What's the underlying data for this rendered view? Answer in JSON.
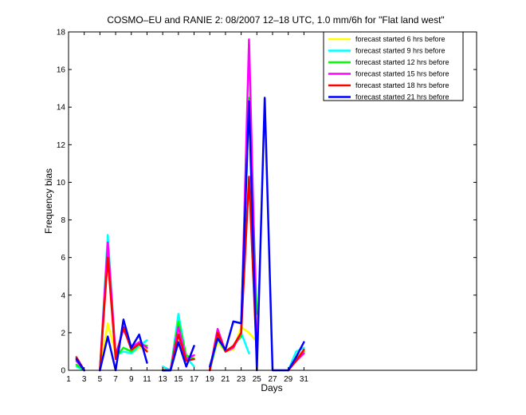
{
  "chart_data": {
    "type": "line",
    "title": "COSMO–EU and RANIE 2: 08/2007 12–18 UTC, 1.0 mm/6h for \"Flat land west\"",
    "xlabel": "Days",
    "ylabel": "Frequency bias",
    "xlim": [
      1,
      53
    ],
    "ylim": [
      0,
      18
    ],
    "xticks": [
      1,
      3,
      5,
      7,
      9,
      11,
      13,
      15,
      17,
      19,
      21,
      23,
      25,
      27,
      29,
      31
    ],
    "yticks": [
      0,
      2,
      4,
      6,
      8,
      10,
      12,
      14,
      16,
      18
    ],
    "grid": false,
    "legend_position": "top-right",
    "series": [
      {
        "name": "forecast started 6 hrs before",
        "color": "#ffff00",
        "points": [
          [
            [
              2,
              0.5
            ],
            [
              3,
              0.0
            ]
          ],
          [
            [
              5,
              0.0
            ],
            [
              6,
              2.5
            ],
            [
              7,
              0.9
            ],
            [
              8,
              1.0
            ],
            [
              9,
              0.9
            ],
            [
              10,
              1.2
            ],
            [
              11,
              1.1
            ]
          ],
          [
            [
              13,
              0.1
            ],
            [
              14,
              0.0
            ],
            [
              15,
              2.0
            ],
            [
              16,
              0.5
            ],
            [
              17,
              0.7
            ]
          ],
          [
            [
              19,
              0.1
            ],
            [
              20,
              1.5
            ],
            [
              21,
              1.0
            ],
            [
              22,
              1.1
            ],
            [
              23,
              2.3
            ],
            [
              24,
              2.0
            ],
            [
              25,
              1.5
            ]
          ],
          [
            [
              29,
              0.0
            ],
            [
              30,
              0.8
            ],
            [
              31,
              1.0
            ]
          ]
        ]
      },
      {
        "name": "forecast started 9 hrs before",
        "color": "#00ffff",
        "points": [
          [
            [
              2,
              0.2
            ],
            [
              3,
              0.0
            ]
          ],
          [
            [
              5,
              0.0
            ],
            [
              6,
              7.2
            ],
            [
              7,
              0.8
            ],
            [
              8,
              1.0
            ],
            [
              9,
              0.9
            ],
            [
              10,
              1.3
            ],
            [
              11,
              1.6
            ]
          ],
          [
            [
              13,
              0.2
            ],
            [
              14,
              0.0
            ],
            [
              15,
              3.0
            ],
            [
              16,
              0.7
            ],
            [
              17,
              0.2
            ]
          ],
          [
            [
              19,
              0.0
            ],
            [
              20,
              1.7
            ],
            [
              21,
              1.0
            ],
            [
              22,
              1.2
            ],
            [
              23,
              2.0
            ],
            [
              24,
              0.9
            ]
          ],
          [
            [
              29,
              0.0
            ],
            [
              30,
              1.0
            ],
            [
              31,
              1.2
            ]
          ]
        ]
      },
      {
        "name": "forecast started 12 hrs before",
        "color": "#00ff00",
        "points": [
          [
            [
              2,
              0.3
            ],
            [
              3,
              0.0
            ]
          ],
          [
            [
              5,
              0.0
            ],
            [
              6,
              6.5
            ],
            [
              7,
              0.7
            ],
            [
              8,
              1.2
            ],
            [
              9,
              1.0
            ],
            [
              10,
              1.4
            ],
            [
              11,
              1.3
            ]
          ],
          [
            [
              13,
              0.0
            ],
            [
              14,
              0.0
            ],
            [
              15,
              2.6
            ],
            [
              16,
              0.8
            ],
            [
              17,
              0.6
            ]
          ],
          [
            [
              19,
              0.0
            ],
            [
              20,
              1.8
            ],
            [
              21,
              1.0
            ],
            [
              22,
              1.3
            ],
            [
              23,
              1.8
            ],
            [
              24,
              14.5
            ],
            [
              25,
              3.0
            ]
          ],
          [
            [
              29,
              0.0
            ],
            [
              30,
              0.6
            ],
            [
              31,
              1.0
            ]
          ]
        ]
      },
      {
        "name": "forecast started 15 hrs before",
        "color": "#ff00ff",
        "points": [
          [
            [
              2,
              0.5
            ],
            [
              3,
              0.0
            ]
          ],
          [
            [
              5,
              0.0
            ],
            [
              6,
              6.8
            ],
            [
              7,
              0.8
            ],
            [
              8,
              2.2
            ],
            [
              9,
              1.2
            ],
            [
              10,
              1.5
            ],
            [
              11,
              1.2
            ]
          ],
          [
            [
              13,
              0.0
            ],
            [
              14,
              0.0
            ],
            [
              15,
              2.3
            ],
            [
              16,
              0.6
            ],
            [
              17,
              0.8
            ]
          ],
          [
            [
              19,
              0.0
            ],
            [
              20,
              2.2
            ],
            [
              21,
              1.0
            ],
            [
              22,
              1.2
            ],
            [
              23,
              2.0
            ],
            [
              24,
              17.6
            ],
            [
              25,
              1.0
            ]
          ],
          [
            [
              29,
              0.0
            ],
            [
              30,
              0.5
            ],
            [
              31,
              0.9
            ]
          ]
        ]
      },
      {
        "name": "forecast started 18 hrs before",
        "color": "#ff0000",
        "points": [
          [
            [
              2,
              0.7
            ],
            [
              3,
              0.0
            ]
          ],
          [
            [
              5,
              0.0
            ],
            [
              6,
              6.0
            ],
            [
              7,
              0.6
            ],
            [
              8,
              2.3
            ],
            [
              9,
              1.1
            ],
            [
              10,
              1.4
            ],
            [
              11,
              1.0
            ]
          ],
          [
            [
              13,
              0.0
            ],
            [
              14,
              0.0
            ],
            [
              15,
              1.9
            ],
            [
              16,
              0.5
            ],
            [
              17,
              0.6
            ]
          ],
          [
            [
              19,
              0.0
            ],
            [
              20,
              2.0
            ],
            [
              21,
              1.0
            ],
            [
              22,
              1.3
            ],
            [
              23,
              2.0
            ],
            [
              24,
              10.3
            ],
            [
              25,
              0.5
            ]
          ],
          [
            [
              29,
              0.0
            ],
            [
              30,
              0.5
            ],
            [
              31,
              1.1
            ]
          ]
        ]
      },
      {
        "name": "forecast started 21 hrs before",
        "color": "#0000ff",
        "points": [
          [
            [
              2,
              0.6
            ],
            [
              3,
              0.0
            ]
          ],
          [
            [
              5,
              0.0
            ],
            [
              6,
              1.8
            ],
            [
              7,
              0.0
            ],
            [
              8,
              2.7
            ],
            [
              9,
              1.2
            ],
            [
              10,
              1.9
            ],
            [
              11,
              0.4
            ]
          ],
          [
            [
              13,
              0.0
            ],
            [
              14,
              0.0
            ],
            [
              15,
              1.5
            ],
            [
              16,
              0.2
            ],
            [
              17,
              1.3
            ]
          ],
          [
            [
              19,
              0.2
            ],
            [
              20,
              1.7
            ],
            [
              21,
              1.1
            ],
            [
              22,
              2.6
            ],
            [
              23,
              2.5
            ],
            [
              24,
              14.3
            ],
            [
              25,
              0.0
            ],
            [
              26,
              14.5
            ],
            [
              27,
              0.0
            ],
            [
              28,
              0.0
            ],
            [
              29,
              0.0
            ],
            [
              30,
              0.7
            ],
            [
              31,
              1.5
            ]
          ]
        ]
      }
    ]
  }
}
